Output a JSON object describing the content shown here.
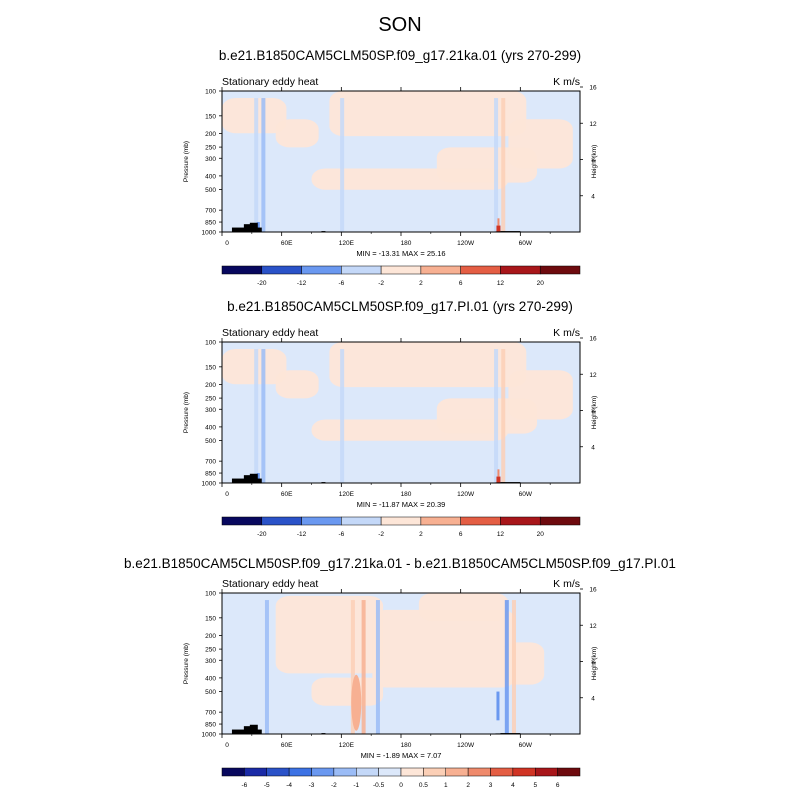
{
  "figure": {
    "season": "SON",
    "colors": {
      "palette": [
        "#08085e",
        "#1a2aa6",
        "#2a52c8",
        "#3c72e4",
        "#6a98f0",
        "#9bbcf6",
        "#c4d8f8",
        "#dce8fa",
        "#fde6d8",
        "#fbcfb6",
        "#f7b092",
        "#ef8a6c",
        "#e45e44",
        "#d03424",
        "#a8161a",
        "#6e0a0e"
      ],
      "background": "#ffffff",
      "topography": "#000000"
    },
    "panels": [
      {
        "title": "b.e21.B1850CAM5CLM50SP.f09_g17.21ka.01 (yrs 270-299)",
        "left_label": "Stationary eddy heat",
        "right_label": "K m/s",
        "min_max": "MIN = -13.31  MAX =  25.16",
        "colorbar_labels": [
          "-20",
          "-12",
          "-6",
          "-2",
          "2",
          "6",
          "12",
          "20"
        ]
      },
      {
        "title": "b.e21.B1850CAM5CLM50SP.f09_g17.PI.01 (yrs 270-299)",
        "left_label": "Stationary eddy heat",
        "right_label": "K m/s",
        "min_max": "MIN = -11.87  MAX =  20.39",
        "colorbar_labels": [
          "-20",
          "-12",
          "-6",
          "-2",
          "2",
          "6",
          "12",
          "20"
        ]
      },
      {
        "title": "b.e21.B1850CAM5CLM50SP.f09_g17.21ka.01 - b.e21.B1850CAM5CLM50SP.f09_g17.PI.01",
        "left_label": "Stationary eddy heat",
        "right_label": "K m/s",
        "min_max": "MIN = -1.89  MAX =  7.07",
        "colorbar_labels": [
          "-6",
          "-5",
          "-4",
          "-3",
          "-2",
          "-1",
          "-0.5",
          "0",
          "0.5",
          "1",
          "2",
          "3",
          "4",
          "5",
          "6"
        ]
      }
    ]
  },
  "chart_data": [
    {
      "type": "heatmap",
      "title": "b.e21.B1850CAM5CLM50SP.f09_g17.21ka.01 (yrs 270-299)",
      "subtitle": "Stationary eddy heat",
      "units": "K m/s",
      "xlabel": "",
      "ylabel": "Pressure (mb)",
      "ylabel_right": "Height (km)",
      "xticks": [
        "0",
        "60E",
        "120E",
        "180",
        "120W",
        "60W"
      ],
      "xlim": [
        0,
        360
      ],
      "yticks": [
        "100",
        "150",
        "200",
        "250",
        "300",
        "400",
        "500",
        "700",
        "850",
        "1000"
      ],
      "ylim": [
        1000,
        100
      ],
      "yticks_right": [
        "4",
        "8",
        "12",
        "16"
      ],
      "min": -13.31,
      "max": 25.16,
      "levels": [
        -20,
        -12,
        -6,
        -2,
        2,
        6,
        12,
        20
      ]
    },
    {
      "type": "heatmap",
      "title": "b.e21.B1850CAM5CLM50SP.f09_g17.PI.01 (yrs 270-299)",
      "subtitle": "Stationary eddy heat",
      "units": "K m/s",
      "xlabel": "",
      "ylabel": "Pressure (mb)",
      "ylabel_right": "Height (km)",
      "xticks": [
        "0",
        "60E",
        "120E",
        "180",
        "120W",
        "60W"
      ],
      "xlim": [
        0,
        360
      ],
      "yticks": [
        "100",
        "150",
        "200",
        "250",
        "300",
        "400",
        "500",
        "700",
        "850",
        "1000"
      ],
      "ylim": [
        1000,
        100
      ],
      "yticks_right": [
        "4",
        "8",
        "12",
        "16"
      ],
      "min": -11.87,
      "max": 20.39,
      "levels": [
        -20,
        -12,
        -6,
        -2,
        2,
        6,
        12,
        20
      ]
    },
    {
      "type": "heatmap",
      "title": "b.e21.B1850CAM5CLM50SP.f09_g17.21ka.01 - b.e21.B1850CAM5CLM50SP.f09_g17.PI.01",
      "subtitle": "Stationary eddy heat",
      "units": "K m/s",
      "xlabel": "",
      "ylabel": "Pressure (mb)",
      "ylabel_right": "Height (km)",
      "xticks": [
        "0",
        "60E",
        "120E",
        "180",
        "120W",
        "60W"
      ],
      "xlim": [
        0,
        360
      ],
      "yticks": [
        "100",
        "150",
        "200",
        "250",
        "300",
        "400",
        "500",
        "700",
        "850",
        "1000"
      ],
      "ylim": [
        1000,
        100
      ],
      "yticks_right": [
        "4",
        "8",
        "12",
        "16"
      ],
      "min": -1.89,
      "max": 7.07,
      "levels": [
        -6,
        -5,
        -4,
        -3,
        -2,
        -1,
        -0.5,
        0,
        0.5,
        1,
        2,
        3,
        4,
        5,
        6
      ]
    }
  ]
}
